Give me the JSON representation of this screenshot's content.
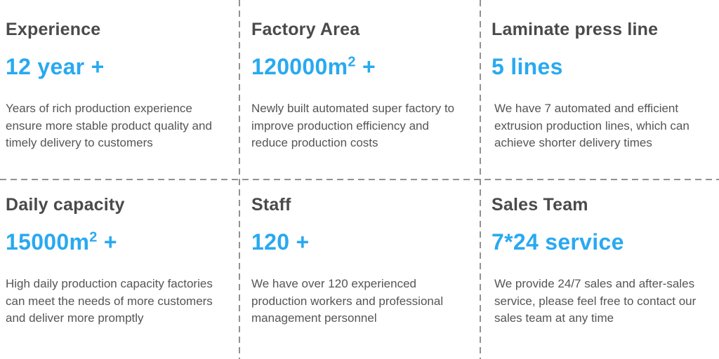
{
  "page": {
    "background": "#ffffff",
    "accent_blue": "#29a9f0",
    "heading_color": "#4a4a4a",
    "body_color": "#555555",
    "divider_color": "#919191"
  },
  "cards": [
    {
      "heading": "Experience",
      "value": "12 year +",
      "value_sup": "",
      "value_tail": "",
      "description": "Years of rich production experience ensure more stable product quality and timely delivery to customers"
    },
    {
      "heading": "Factory Area",
      "value": "120000m",
      "value_sup": "2",
      "value_tail": " +",
      "description": "Newly built automated super factory to improve production efficiency and reduce production costs"
    },
    {
      "heading": "Laminate press line",
      "value": "5 lines",
      "value_sup": "",
      "value_tail": "",
      "description": "We have 7 automated and efficient extrusion production lines, which can achieve shorter delivery times"
    },
    {
      "heading": "Daily capacity",
      "value": "15000m",
      "value_sup": "2",
      "value_tail": " +",
      "description": "High daily production capacity factories can meet the needs of more customers and deliver more promptly"
    },
    {
      "heading": "Staff",
      "value": "120 +",
      "value_sup": "",
      "value_tail": "",
      "description": "We have over 120 experienced production workers and professional management personnel"
    },
    {
      "heading": "Sales Team",
      "value": "7*24 service",
      "value_sup": "",
      "value_tail": "",
      "description": "We provide 24/7 sales and after-sales service, please feel free to contact our sales team at any time"
    }
  ]
}
